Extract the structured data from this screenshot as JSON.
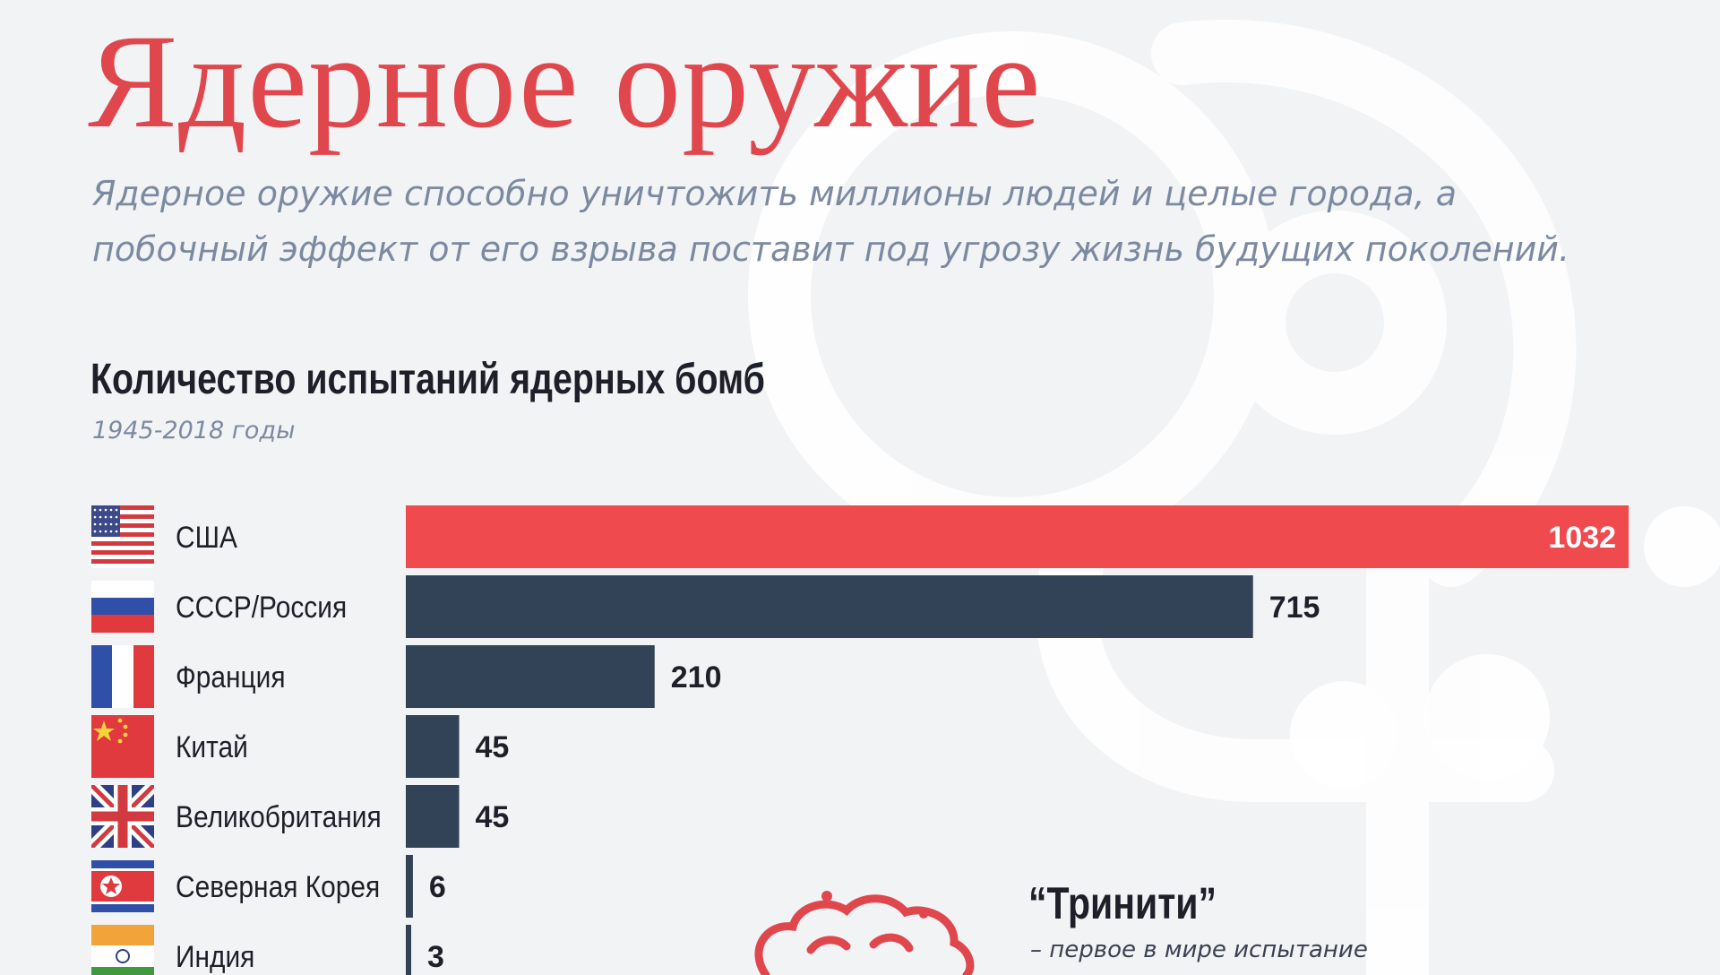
{
  "header": {
    "title": "Ядерное оружие",
    "subtitle": "Ядерное оружие способно уничтожить миллионы людей и целые города, а побочный эффект от его взрыва поставит под угрозу жизнь будущих поколений."
  },
  "chart_data": {
    "type": "bar",
    "orientation": "horizontal",
    "title": "Количество испытаний ядерных бомб",
    "subtitle": "1945-2018 годы",
    "categories": [
      "США",
      "СССР/Россия",
      "Франция",
      "Китай",
      "Великобритания",
      "Северная Корея",
      "Индия"
    ],
    "values": [
      1032,
      715,
      210,
      45,
      45,
      6,
      3
    ],
    "flags": [
      "usa-flag-icon",
      "russia-flag-icon",
      "france-flag-icon",
      "china-flag-icon",
      "uk-flag-icon",
      "north-korea-flag-icon",
      "india-flag-icon"
    ],
    "xlim": [
      0,
      1032
    ],
    "highlight_color": "#ef4a4e",
    "bar_color": "#324257",
    "grid": false,
    "legend": "none"
  },
  "callout": {
    "title": "“Тринити”",
    "text": "– первое в мире испытание",
    "icon": "mushroom-cloud-icon"
  },
  "colors": {
    "title": "#e0474c",
    "subtitle": "#7b8aa0",
    "background": "#f2f3f5"
  }
}
